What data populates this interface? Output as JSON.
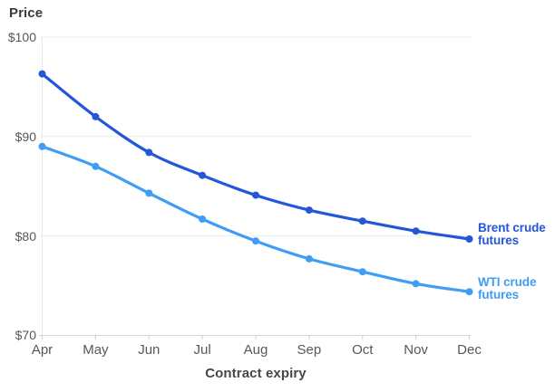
{
  "chart_data": {
    "type": "line",
    "title": "Price",
    "xlabel": "Contract expiry",
    "categories": [
      "Apr",
      "May",
      "Jun",
      "Jul",
      "Aug",
      "Sep",
      "Oct",
      "Nov",
      "Dec"
    ],
    "ylim": [
      70,
      100
    ],
    "yticks": [
      70,
      80,
      90,
      100
    ],
    "ytick_labels": [
      "$70",
      "$80",
      "$90",
      "$100"
    ],
    "grid": "horizontal",
    "legend_position": "series-end-labels-right",
    "series": [
      {
        "name": "brent-crude-futures",
        "label": "Brent crude futures",
        "label_lines": [
          "Brent crude",
          "futures"
        ],
        "color": "#2356d8",
        "values": [
          96.3,
          92.0,
          88.4,
          86.1,
          84.1,
          82.6,
          81.5,
          80.5,
          79.7
        ]
      },
      {
        "name": "wti-crude-futures",
        "label": "WTI crude futures",
        "label_lines": [
          "WTI crude",
          "futures"
        ],
        "color": "#3f9df5",
        "values": [
          89.0,
          87.0,
          84.3,
          81.7,
          79.5,
          77.7,
          76.4,
          75.2,
          74.4
        ]
      }
    ],
    "colors": {
      "grid": "#eaebec",
      "axis": "#d6d7d8",
      "tick": "#cfd0d1",
      "label_text": "#55575a",
      "title_text": "#3b3b3b"
    }
  }
}
